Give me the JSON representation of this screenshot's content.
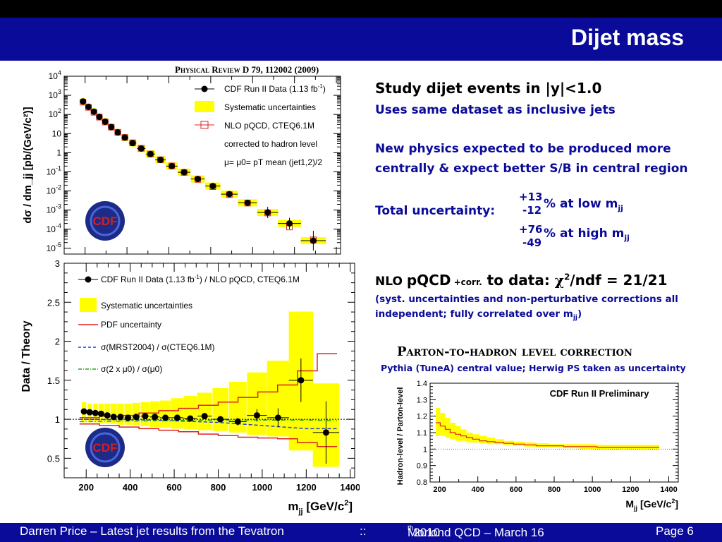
{
  "slide": {
    "title": "Dijet mass",
    "journal_ref": "Physical Review D 79, 112002 (2009)",
    "footer": {
      "author": "Darren Price – Latest jet results from the Tevatron",
      "sep": "::",
      "event": "Moriond QCD – March 16",
      "event_sup": "th",
      "event_year": " 2010",
      "page": "Page 6"
    }
  },
  "text": {
    "study_a": "Study dijet events in |y|<1.0",
    "same_dataset": "Uses same dataset as inclusive jets",
    "new_physics_1": "New physics expected to be produced more",
    "new_physics_2": "centrally & expect better S/B in central region",
    "total_unc_label": "Total uncertainty:",
    "low_plus": "+13",
    "low_minus": "-12",
    "low_text": "% at low m",
    "high_plus": "+76",
    "high_minus": "-49",
    "high_text": "% at high m",
    "jj": "jj",
    "nlo_a": "NLO ",
    "nlo_b": "pQCD",
    "nlo_c": " +corr.",
    "nlo_d": " to data: ",
    "chi": "χ",
    "chi_sup": "2",
    "ndf": "/ndf = 21/21",
    "syst_1": "(syst. uncertainties and non-perturbative corrections all",
    "syst_2a": "independent; fully correlated over m",
    "syst_2b": ")",
    "correction_title": "Parton-to-hadron level correction",
    "correction_sub": "Pythia (TuneA) central value; Herwig PS taken as uncertainty"
  },
  "colors": {
    "banner": "#0b0b99",
    "syst_band": "#ffff00",
    "pdf_line": "#e02020",
    "mrst_line": "#2244dd",
    "mu_line": "#22aa22",
    "nlo_marker": "#e02020"
  },
  "chart_data": [
    {
      "type": "scatter",
      "title": "",
      "xlabel": "",
      "ylabel": "dσ / dm_jj [pb/(GeV/c²)]",
      "ylog": true,
      "ylim": [
        5e-06,
        10000
      ],
      "xlim": [
        100,
        1420
      ],
      "yticks": [
        "10^-5",
        "10^-4",
        "10^-3",
        "10^-2",
        "10^-1",
        "1",
        "10",
        "10^2",
        "10^3",
        "10^4"
      ],
      "legend": [
        {
          "key": "data",
          "label": "CDF Run II Data (1.13 fb",
          "sup": "-1",
          "tail": ")"
        },
        {
          "key": "syst",
          "label": "Systematic uncertainties"
        },
        {
          "key": "nlo",
          "label": "NLO pQCD, CTEQ6.1M"
        },
        {
          "key": "nlo2",
          "label": "corrected to hadron level"
        },
        {
          "key": "mu",
          "label": "μ= μ0= pT mean (jet1,2)/2"
        }
      ],
      "legend_placement": "top-right",
      "x": [
        190,
        216,
        242,
        268,
        296,
        325,
        356,
        390,
        427,
        468,
        512,
        560,
        614,
        673,
        738,
        810,
        889,
        976,
        1072,
        1176,
        1290
      ],
      "xerr": [
        10,
        10,
        10,
        12,
        13,
        14,
        15,
        16,
        18,
        20,
        22,
        25,
        28,
        30,
        33,
        36,
        40,
        45,
        50,
        55,
        60
      ],
      "y": [
        480,
        250,
        140,
        75,
        42,
        22,
        11.5,
        6.2,
        3.2,
        1.65,
        0.85,
        0.42,
        0.2,
        0.095,
        0.042,
        0.018,
        0.0068,
        0.0024,
        0.00075,
        0.0002,
        2.5e-05
      ],
      "nlo": [
        440,
        235,
        130,
        72,
        40,
        21.5,
        11.8,
        6.3,
        3.3,
        1.7,
        0.86,
        0.43,
        0.205,
        0.093,
        0.04,
        0.0168,
        0.0064,
        0.0023,
        0.0007,
        0.00013,
        2.8e-05
      ]
    },
    {
      "type": "scatter",
      "title": "",
      "xlabel": "m_jj [GeV/c²]",
      "ylabel": "Data / Theory",
      "ylim": [
        0.25,
        3
      ],
      "xlim": [
        100,
        1420
      ],
      "yticks": [
        0.5,
        1,
        1.5,
        2,
        2.5,
        3
      ],
      "xticks": [
        200,
        400,
        600,
        800,
        1000,
        1200,
        1400
      ],
      "legend": [
        {
          "key": "data",
          "label": "CDF Run II Data (1.13 fb",
          "sup": "-1",
          "tail": ") / NLO pQCD, CTEQ6.1M"
        },
        {
          "key": "syst",
          "label": "Systematic uncertainties"
        },
        {
          "key": "pdf",
          "label": "PDF uncertainty"
        },
        {
          "key": "mrst",
          "label": "σ(MRST2004) / σ(CTEQ6.1M)"
        },
        {
          "key": "mu",
          "label": "σ(2 x μ0) / σ(μ0)"
        }
      ],
      "legend_placement": "top-left",
      "x": [
        190,
        216,
        242,
        268,
        296,
        325,
        356,
        390,
        427,
        468,
        512,
        560,
        614,
        673,
        738,
        810,
        889,
        976,
        1072,
        1176,
        1290
      ],
      "xerr": [
        10,
        10,
        10,
        12,
        13,
        14,
        15,
        16,
        18,
        20,
        22,
        25,
        28,
        30,
        33,
        36,
        40,
        45,
        50,
        55,
        60
      ],
      "ratio": [
        1.1,
        1.09,
        1.08,
        1.07,
        1.05,
        1.03,
        1.03,
        1.02,
        1.03,
        1.04,
        1.03,
        1.02,
        1.02,
        1.01,
        1.04,
        1.0,
        0.97,
        1.05,
        1.02,
        1.5,
        0.83
      ],
      "ratio_err": [
        0.01,
        0.01,
        0.01,
        0.01,
        0.01,
        0.01,
        0.01,
        0.01,
        0.01,
        0.01,
        0.01,
        0.02,
        0.02,
        0.02,
        0.03,
        0.04,
        0.05,
        0.08,
        0.12,
        0.28,
        0.4
      ],
      "syst_hi": [
        1.22,
        1.2,
        1.2,
        1.2,
        1.2,
        1.2,
        1.2,
        1.2,
        1.21,
        1.22,
        1.23,
        1.24,
        1.27,
        1.3,
        1.34,
        1.4,
        1.48,
        1.6,
        1.75,
        2.38,
        1.46
      ],
      "syst_lo": [
        0.96,
        0.96,
        0.96,
        0.95,
        0.95,
        0.94,
        0.93,
        0.93,
        0.92,
        0.91,
        0.9,
        0.89,
        0.88,
        0.87,
        0.86,
        0.85,
        0.83,
        0.8,
        0.78,
        0.6,
        0.39
      ],
      "pdf_x": [
        170,
        260,
        350,
        440,
        530,
        620,
        710,
        800,
        890,
        980,
        1070,
        1160,
        1250,
        1340
      ],
      "pdf_hi": [
        1.02,
        1.04,
        1.05,
        1.08,
        1.11,
        1.14,
        1.18,
        1.22,
        1.28,
        1.35,
        1.44,
        1.62,
        1.84,
        1.84
      ],
      "pdf_lo": [
        0.94,
        0.92,
        0.9,
        0.88,
        0.86,
        0.84,
        0.81,
        0.79,
        0.77,
        0.76,
        0.75,
        0.7,
        0.65,
        0.65
      ],
      "mrst_x": [
        170,
        500,
        800,
        1000,
        1100,
        1200,
        1340
      ],
      "mrst": [
        1.0,
        0.99,
        0.96,
        0.92,
        0.9,
        0.88,
        0.88
      ],
      "mu_x": [
        170,
        500,
        800,
        1000,
        1100,
        1200,
        1340
      ],
      "mu": [
        0.97,
        0.98,
        0.99,
        0.99,
        0.99,
        0.99,
        0.98
      ]
    },
    {
      "type": "line",
      "title": "CDF Run II Preliminary",
      "xlabel": "Mjj [GeV/c²]",
      "ylabel": "Hadron-level / Parton-level",
      "ylim": [
        0.8,
        1.4
      ],
      "xlim": [
        150,
        1450
      ],
      "yticks": [
        0.8,
        0.9,
        1,
        1.1,
        1.2,
        1.3,
        1.4
      ],
      "xticks": [
        200,
        400,
        600,
        800,
        1000,
        1200,
        1400
      ],
      "x": [
        190,
        216,
        242,
        268,
        296,
        325,
        356,
        390,
        427,
        468,
        512,
        560,
        614,
        673,
        738,
        810,
        889,
        976,
        1072,
        1176,
        1290
      ],
      "central": [
        1.16,
        1.14,
        1.12,
        1.1,
        1.09,
        1.08,
        1.07,
        1.06,
        1.05,
        1.045,
        1.04,
        1.035,
        1.03,
        1.025,
        1.02,
        1.02,
        1.015,
        1.015,
        1.01,
        1.01,
        1.01
      ],
      "band_hi": [
        1.25,
        1.22,
        1.19,
        1.16,
        1.14,
        1.12,
        1.1,
        1.09,
        1.08,
        1.07,
        1.06,
        1.05,
        1.045,
        1.04,
        1.035,
        1.03,
        1.03,
        1.03,
        1.025,
        1.025,
        1.025
      ],
      "band_lo": [
        1.08,
        1.08,
        1.07,
        1.06,
        1.05,
        1.05,
        1.04,
        1.04,
        1.035,
        1.03,
        1.03,
        1.025,
        1.02,
        1.015,
        1.01,
        1.01,
        1.005,
        1.0,
        0.995,
        0.995,
        0.995
      ]
    }
  ]
}
